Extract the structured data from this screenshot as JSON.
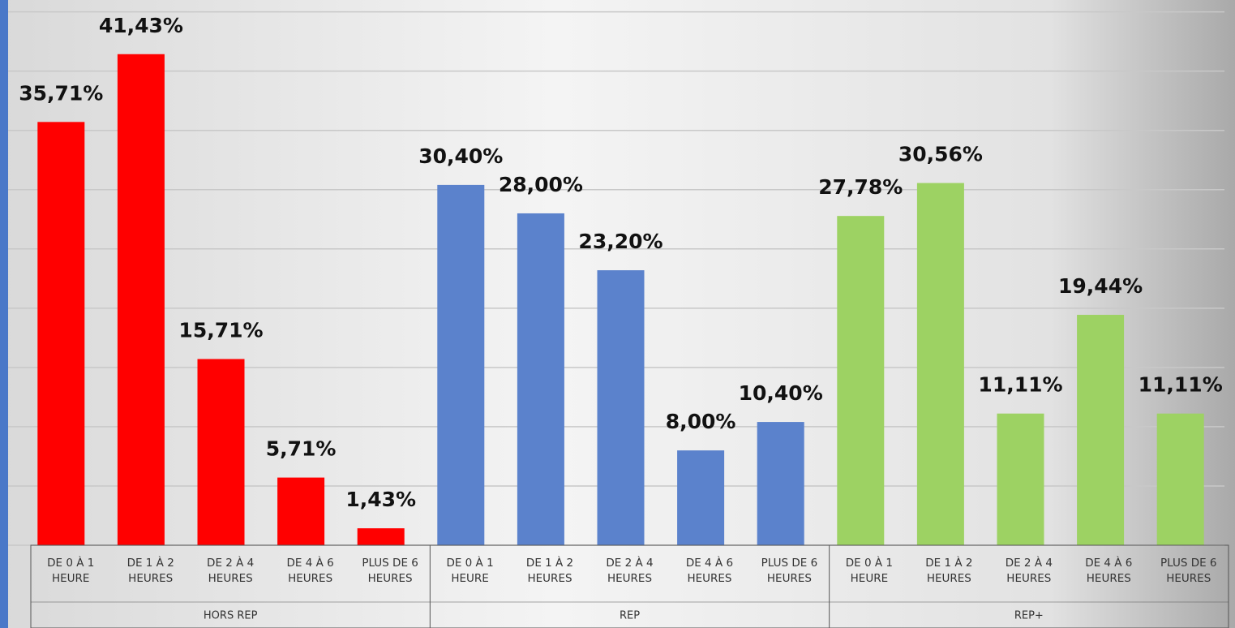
{
  "chart_data": {
    "type": "bar",
    "categories": [
      "DE 0 À 1\nHEURE",
      "DE 1 À 2\nHEURES",
      "DE 2 À 4\nHEURES",
      "DE 4 À 6\nHEURES",
      "PLUS DE 6\nHEURES"
    ],
    "series": [
      {
        "name": "HORS REP",
        "color": "#ff0000",
        "values": [
          35.71,
          41.43,
          15.71,
          5.71,
          1.43
        ],
        "value_labels": [
          "35,71%",
          "41,43%",
          "15,71%",
          "5,71%",
          "1,43%"
        ]
      },
      {
        "name": "REP",
        "color": "#5b82cc",
        "values": [
          30.4,
          28.0,
          23.2,
          8.0,
          10.4
        ],
        "value_labels": [
          "30,40%",
          "28,00%",
          "23,20%",
          "8,00%",
          "10,40%"
        ]
      },
      {
        "name": "REP+",
        "color": "#9dd263",
        "values": [
          27.78,
          30.56,
          11.11,
          19.44,
          11.11
        ],
        "value_labels": [
          "27,78%",
          "30,56%",
          "11,11%",
          "19,44%",
          "11,11%"
        ]
      }
    ],
    "ylim": [
      0,
      46
    ],
    "yticks": [
      0,
      5,
      10,
      15,
      20,
      25,
      30,
      35,
      40,
      45
    ],
    "grid": true
  }
}
